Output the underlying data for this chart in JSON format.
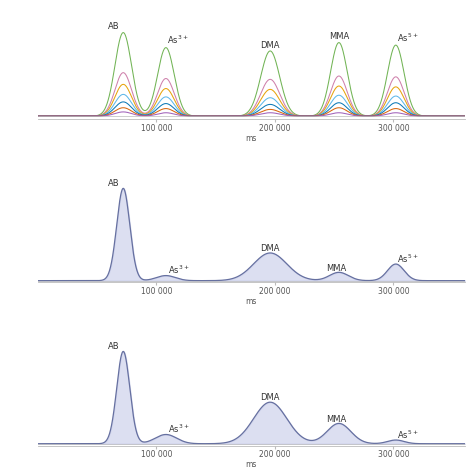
{
  "fig_bg": "#ffffff",
  "panel_bg": "#ffffff",
  "xlim": [
    0,
    360000
  ],
  "xticks": [
    100000,
    200000,
    300000
  ],
  "xticklabels": [
    "100 000",
    "200 000",
    "300 000"
  ],
  "xlabel": "ms",
  "peak_positions": {
    "AB": 72000,
    "As3": 108000,
    "DMA": 196000,
    "MMA": 254000,
    "As5": 302000
  },
  "peak_sigmas_p1": {
    "AB": 7000,
    "As3": 7000,
    "DMA": 8000,
    "MMA": 7000,
    "As5": 7000
  },
  "panel1_colors": [
    "#6ab04c",
    "#cc79a7",
    "#e69f00",
    "#56b4e9",
    "#0072b2",
    "#d55e00",
    "#9b59b6"
  ],
  "panel1_heights": {
    "AB": [
      1.0,
      0.52,
      0.38,
      0.26,
      0.17,
      0.1,
      0.05
    ],
    "As3": [
      0.82,
      0.45,
      0.33,
      0.23,
      0.15,
      0.09,
      0.04
    ],
    "DMA": [
      0.78,
      0.44,
      0.32,
      0.22,
      0.14,
      0.08,
      0.04
    ],
    "MMA": [
      0.88,
      0.48,
      0.36,
      0.25,
      0.16,
      0.1,
      0.04
    ],
    "As5": [
      0.85,
      0.47,
      0.35,
      0.24,
      0.16,
      0.09,
      0.04
    ]
  },
  "peak_sigmas_p2": {
    "AB": 5500,
    "As3": 8000,
    "DMA": 14000,
    "MMA": 8000,
    "As5": 7000
  },
  "panel2_heights": {
    "AB": 1.0,
    "As3": 0.055,
    "DMA": 0.3,
    "MMA": 0.09,
    "As5": 0.18
  },
  "peak_sigmas_p3": {
    "AB": 5500,
    "As3": 9000,
    "DMA": 14000,
    "MMA": 10000,
    "As5": 7000
  },
  "panel3_heights": {
    "AB": 1.0,
    "As3": 0.1,
    "DMA": 0.45,
    "MMA": 0.22,
    "As5": 0.04
  },
  "fill_color": "#c5cae9",
  "fill_alpha": 0.6,
  "line_color": "#6670a0",
  "line_width": 0.9,
  "label_color": "#333333",
  "label_fontsize": 6.0,
  "tick_fontsize": 5.5,
  "baseline_color": "#bbbbbb"
}
